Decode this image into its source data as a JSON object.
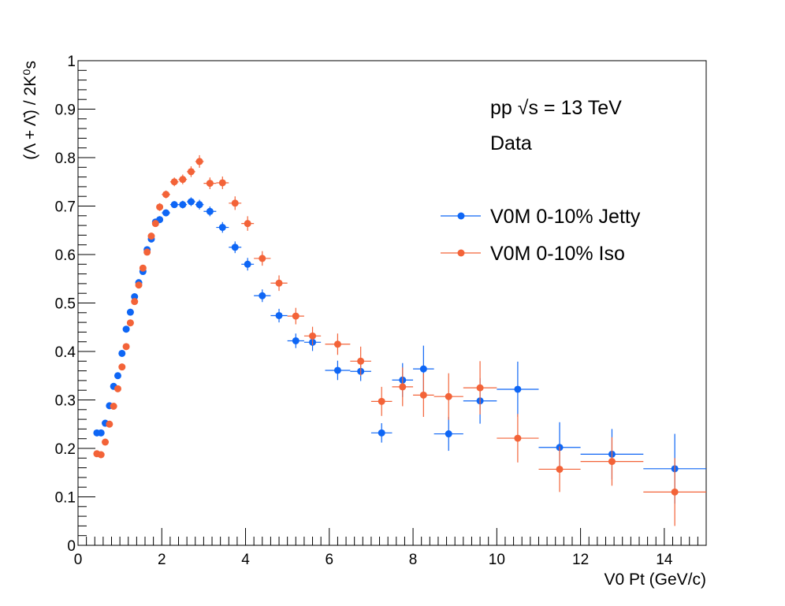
{
  "chart_data": {
    "type": "scatter",
    "xlabel": "V0 Pt (GeV/c)",
    "ylabel": "(Λ + Λ̄) / 2K⁰s",
    "xlim": [
      0,
      15
    ],
    "ylim": [
      0,
      1
    ],
    "xticks": [
      "0",
      "2",
      "4",
      "6",
      "8",
      "10",
      "12",
      "14"
    ],
    "yticks": [
      "0",
      "0.1",
      "0.2",
      "0.3",
      "0.4",
      "0.5",
      "0.6",
      "0.7",
      "0.8",
      "0.9",
      "1"
    ],
    "grid": false,
    "legend_position": "top-right",
    "annotations": [
      "pp  √s = 13 TeV",
      "Data"
    ],
    "series": [
      {
        "name": "V0M 0-10% Jetty",
        "color": "#0e66f5",
        "points": [
          {
            "x": 0.45,
            "y": 0.232,
            "xerr": 0.05,
            "yerr": 0.006
          },
          {
            "x": 0.55,
            "y": 0.232,
            "xerr": 0.05,
            "yerr": 0.005
          },
          {
            "x": 0.65,
            "y": 0.252,
            "xerr": 0.05,
            "yerr": 0.005
          },
          {
            "x": 0.75,
            "y": 0.288,
            "xerr": 0.05,
            "yerr": 0.005
          },
          {
            "x": 0.85,
            "y": 0.328,
            "xerr": 0.05,
            "yerr": 0.005
          },
          {
            "x": 0.95,
            "y": 0.35,
            "xerr": 0.05,
            "yerr": 0.005
          },
          {
            "x": 1.05,
            "y": 0.396,
            "xerr": 0.05,
            "yerr": 0.005
          },
          {
            "x": 1.15,
            "y": 0.446,
            "xerr": 0.05,
            "yerr": 0.005
          },
          {
            "x": 1.25,
            "y": 0.481,
            "xerr": 0.05,
            "yerr": 0.005
          },
          {
            "x": 1.35,
            "y": 0.513,
            "xerr": 0.05,
            "yerr": 0.005
          },
          {
            "x": 1.45,
            "y": 0.542,
            "xerr": 0.05,
            "yerr": 0.005
          },
          {
            "x": 1.55,
            "y": 0.565,
            "xerr": 0.05,
            "yerr": 0.005
          },
          {
            "x": 1.65,
            "y": 0.61,
            "xerr": 0.05,
            "yerr": 0.005
          },
          {
            "x": 1.75,
            "y": 0.632,
            "xerr": 0.05,
            "yerr": 0.006
          },
          {
            "x": 1.85,
            "y": 0.667,
            "xerr": 0.05,
            "yerr": 0.006
          },
          {
            "x": 1.95,
            "y": 0.672,
            "xerr": 0.05,
            "yerr": 0.007
          },
          {
            "x": 2.1,
            "y": 0.686,
            "xerr": 0.1,
            "yerr": 0.007
          },
          {
            "x": 2.3,
            "y": 0.703,
            "xerr": 0.1,
            "yerr": 0.007
          },
          {
            "x": 2.5,
            "y": 0.703,
            "xerr": 0.1,
            "yerr": 0.008
          },
          {
            "x": 2.7,
            "y": 0.709,
            "xerr": 0.1,
            "yerr": 0.009
          },
          {
            "x": 2.9,
            "y": 0.703,
            "xerr": 0.1,
            "yerr": 0.01
          },
          {
            "x": 3.15,
            "y": 0.689,
            "xerr": 0.15,
            "yerr": 0.01
          },
          {
            "x": 3.45,
            "y": 0.656,
            "xerr": 0.15,
            "yerr": 0.011
          },
          {
            "x": 3.75,
            "y": 0.615,
            "xerr": 0.15,
            "yerr": 0.012
          },
          {
            "x": 4.05,
            "y": 0.58,
            "xerr": 0.15,
            "yerr": 0.013
          },
          {
            "x": 4.4,
            "y": 0.515,
            "xerr": 0.2,
            "yerr": 0.013
          },
          {
            "x": 4.8,
            "y": 0.474,
            "xerr": 0.2,
            "yerr": 0.014
          },
          {
            "x": 5.2,
            "y": 0.422,
            "xerr": 0.2,
            "yerr": 0.015
          },
          {
            "x": 5.6,
            "y": 0.419,
            "xerr": 0.2,
            "yerr": 0.018
          },
          {
            "x": 6.2,
            "y": 0.361,
            "xerr": 0.3,
            "yerr": 0.02
          },
          {
            "x": 6.75,
            "y": 0.359,
            "xerr": 0.25,
            "yerr": 0.02
          },
          {
            "x": 7.25,
            "y": 0.232,
            "xerr": 0.25,
            "yerr": 0.02
          },
          {
            "x": 7.75,
            "y": 0.341,
            "xerr": 0.25,
            "yerr": 0.035
          },
          {
            "x": 8.25,
            "y": 0.364,
            "xerr": 0.25,
            "yerr": 0.048
          },
          {
            "x": 8.85,
            "y": 0.23,
            "xerr": 0.35,
            "yerr": 0.035
          },
          {
            "x": 9.6,
            "y": 0.298,
            "xerr": 0.4,
            "yerr": 0.047
          },
          {
            "x": 10.5,
            "y": 0.322,
            "xerr": 0.5,
            "yerr": 0.057
          },
          {
            "x": 11.5,
            "y": 0.202,
            "xerr": 0.5,
            "yerr": 0.052
          },
          {
            "x": 12.75,
            "y": 0.188,
            "xerr": 0.75,
            "yerr": 0.052
          },
          {
            "x": 14.25,
            "y": 0.158,
            "xerr": 0.75,
            "yerr": 0.072
          }
        ]
      },
      {
        "name": "V0M 0-10% Iso",
        "color": "#f36338",
        "points": [
          {
            "x": 0.45,
            "y": 0.189,
            "xerr": 0.05,
            "yerr": 0.006
          },
          {
            "x": 0.55,
            "y": 0.187,
            "xerr": 0.05,
            "yerr": 0.005
          },
          {
            "x": 0.65,
            "y": 0.213,
            "xerr": 0.05,
            "yerr": 0.005
          },
          {
            "x": 0.75,
            "y": 0.25,
            "xerr": 0.05,
            "yerr": 0.005
          },
          {
            "x": 0.85,
            "y": 0.287,
            "xerr": 0.05,
            "yerr": 0.005
          },
          {
            "x": 0.95,
            "y": 0.323,
            "xerr": 0.05,
            "yerr": 0.005
          },
          {
            "x": 1.05,
            "y": 0.368,
            "xerr": 0.05,
            "yerr": 0.005
          },
          {
            "x": 1.15,
            "y": 0.41,
            "xerr": 0.05,
            "yerr": 0.005
          },
          {
            "x": 1.25,
            "y": 0.459,
            "xerr": 0.05,
            "yerr": 0.005
          },
          {
            "x": 1.35,
            "y": 0.503,
            "xerr": 0.05,
            "yerr": 0.005
          },
          {
            "x": 1.45,
            "y": 0.537,
            "xerr": 0.05,
            "yerr": 0.006
          },
          {
            "x": 1.55,
            "y": 0.572,
            "xerr": 0.05,
            "yerr": 0.006
          },
          {
            "x": 1.65,
            "y": 0.605,
            "xerr": 0.05,
            "yerr": 0.006
          },
          {
            "x": 1.75,
            "y": 0.638,
            "xerr": 0.05,
            "yerr": 0.007
          },
          {
            "x": 1.85,
            "y": 0.664,
            "xerr": 0.05,
            "yerr": 0.007
          },
          {
            "x": 1.95,
            "y": 0.698,
            "xerr": 0.05,
            "yerr": 0.008
          },
          {
            "x": 2.1,
            "y": 0.724,
            "xerr": 0.1,
            "yerr": 0.008
          },
          {
            "x": 2.3,
            "y": 0.75,
            "xerr": 0.1,
            "yerr": 0.009
          },
          {
            "x": 2.5,
            "y": 0.755,
            "xerr": 0.1,
            "yerr": 0.01
          },
          {
            "x": 2.7,
            "y": 0.771,
            "xerr": 0.1,
            "yerr": 0.011
          },
          {
            "x": 2.9,
            "y": 0.792,
            "xerr": 0.1,
            "yerr": 0.013
          },
          {
            "x": 3.15,
            "y": 0.747,
            "xerr": 0.15,
            "yerr": 0.012
          },
          {
            "x": 3.45,
            "y": 0.748,
            "xerr": 0.15,
            "yerr": 0.013
          },
          {
            "x": 3.75,
            "y": 0.706,
            "xerr": 0.15,
            "yerr": 0.014
          },
          {
            "x": 4.05,
            "y": 0.664,
            "xerr": 0.15,
            "yerr": 0.015
          },
          {
            "x": 4.4,
            "y": 0.592,
            "xerr": 0.2,
            "yerr": 0.015
          },
          {
            "x": 4.8,
            "y": 0.541,
            "xerr": 0.2,
            "yerr": 0.016
          },
          {
            "x": 5.2,
            "y": 0.473,
            "xerr": 0.2,
            "yerr": 0.017
          },
          {
            "x": 5.6,
            "y": 0.432,
            "xerr": 0.2,
            "yerr": 0.019
          },
          {
            "x": 6.2,
            "y": 0.415,
            "xerr": 0.3,
            "yerr": 0.022
          },
          {
            "x": 6.75,
            "y": 0.38,
            "xerr": 0.25,
            "yerr": 0.03
          },
          {
            "x": 7.25,
            "y": 0.297,
            "xerr": 0.25,
            "yerr": 0.03
          },
          {
            "x": 7.75,
            "y": 0.327,
            "xerr": 0.25,
            "yerr": 0.04
          },
          {
            "x": 8.25,
            "y": 0.31,
            "xerr": 0.25,
            "yerr": 0.045
          },
          {
            "x": 8.85,
            "y": 0.307,
            "xerr": 0.35,
            "yerr": 0.048
          },
          {
            "x": 9.6,
            "y": 0.325,
            "xerr": 0.4,
            "yerr": 0.055
          },
          {
            "x": 10.5,
            "y": 0.221,
            "xerr": 0.5,
            "yerr": 0.05
          },
          {
            "x": 11.5,
            "y": 0.157,
            "xerr": 0.5,
            "yerr": 0.047
          },
          {
            "x": 12.75,
            "y": 0.173,
            "xerr": 0.75,
            "yerr": 0.05
          },
          {
            "x": 14.25,
            "y": 0.11,
            "xerr": 0.75,
            "yerr": 0.07
          }
        ]
      }
    ]
  }
}
